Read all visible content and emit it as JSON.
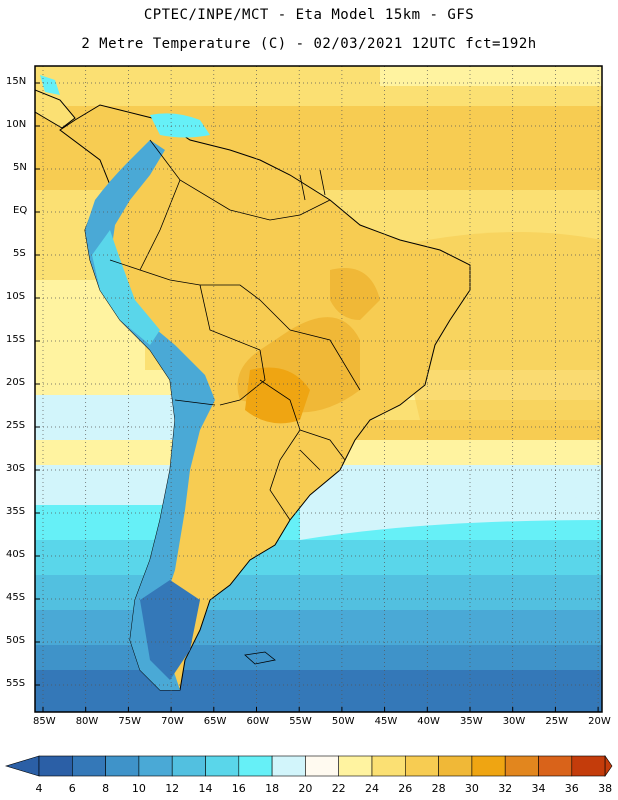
{
  "header": {
    "line1": "CPTEC/INPE/MCT -  Eta Model 15km - GFS",
    "line2": "2 Metre Temperature (C) - 02/03/2021 12UTC fct=192h"
  },
  "map": {
    "lat_labels": [
      "15N",
      "10N",
      "5N",
      "EQ",
      "5S",
      "10S",
      "15S",
      "20S",
      "25S",
      "30S",
      "35S",
      "40S",
      "45S",
      "50S",
      "55S"
    ],
    "lon_labels": [
      "85W",
      "80W",
      "75W",
      "70W",
      "65W",
      "60W",
      "55W",
      "50W",
      "45W",
      "40W",
      "35W",
      "30W",
      "25W",
      "20W"
    ],
    "region": "South America",
    "grid": true
  },
  "colorbar": {
    "labels": [
      "4",
      "6",
      "8",
      "10",
      "12",
      "14",
      "16",
      "18",
      "20",
      "22",
      "24",
      "26",
      "28",
      "30",
      "32",
      "34",
      "36",
      "38"
    ],
    "colors": [
      "#2b5fa6",
      "#3478b8",
      "#3f93c9",
      "#4aa9d6",
      "#52c0e0",
      "#5ad6ea",
      "#66f0f7",
      "#d2f5fb",
      "#fffaf0",
      "#fff3a0",
      "#fbe073",
      "#f7cc52",
      "#f0b837",
      "#efa512",
      "#e2861e",
      "#d9631a",
      "#c43c0b"
    ],
    "low_color": "#2b5fa6",
    "high_color": "#c43c0b"
  }
}
